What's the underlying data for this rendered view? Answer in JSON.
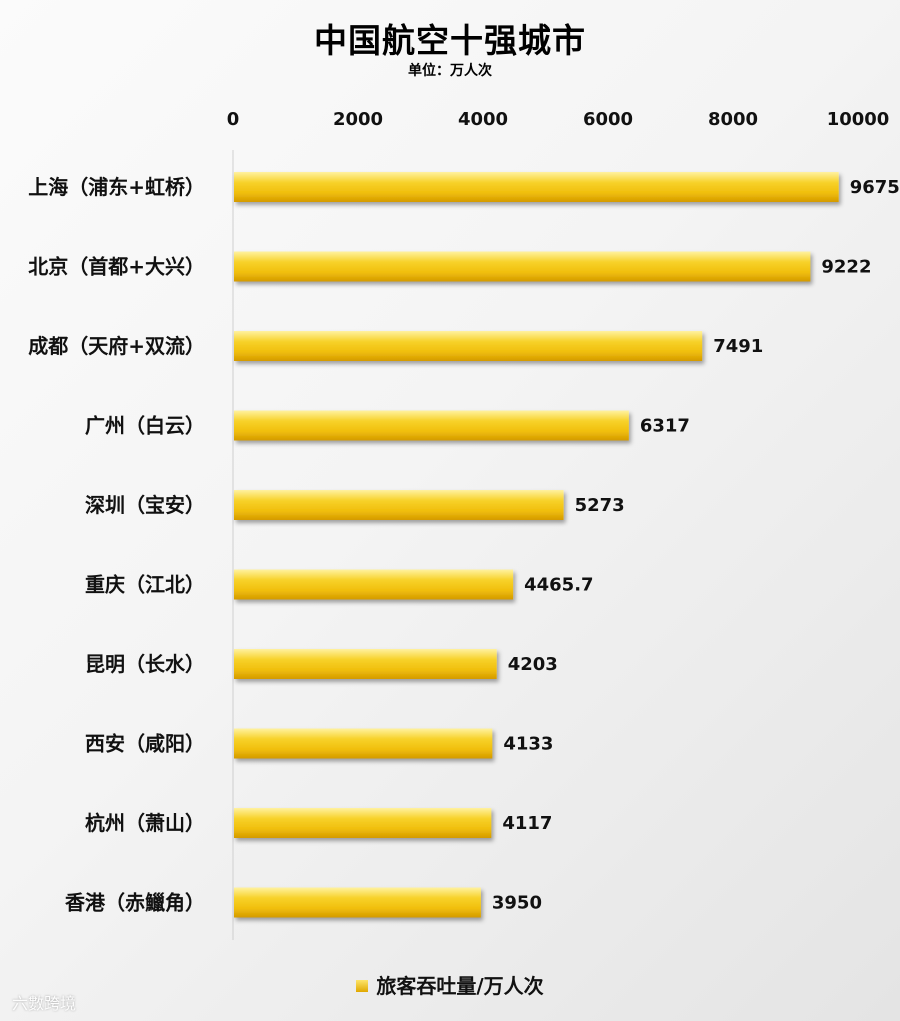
{
  "chart_data": {
    "type": "bar",
    "orientation": "horizontal",
    "title": "中国航空十强城市",
    "subtitle": "单位：万人次",
    "categories": [
      "上海（浦东+虹桥）",
      "北京（首都+大兴）",
      "成都（天府+双流）",
      "广州（白云）",
      "深圳（宝安）",
      "重庆（江北）",
      "昆明（长水）",
      "西安（咸阳）",
      "杭州（萧山）",
      "香港（赤鱲角）"
    ],
    "series": [
      {
        "name": "旅客吞吐量/万人次",
        "values": [
          9675,
          9222,
          7491,
          6317,
          5273,
          4465.7,
          4203,
          4133,
          4117,
          3950
        ]
      }
    ],
    "value_labels": [
      "9675",
      "9222",
      "7491",
      "6317",
      "5273",
      "4465.7",
      "4203",
      "4133",
      "4117",
      "3950"
    ],
    "xlim": [
      0,
      10000
    ],
    "x_ticks": [
      0,
      2000,
      4000,
      6000,
      8000,
      10000
    ],
    "x_tick_labels": [
      "0",
      "2000",
      "4000",
      "6000",
      "8000",
      "10000"
    ],
    "axis_position": "top",
    "grid": false,
    "legend_position": "bottom",
    "bar_color": "#f2c411"
  },
  "watermark": "六數跨境"
}
